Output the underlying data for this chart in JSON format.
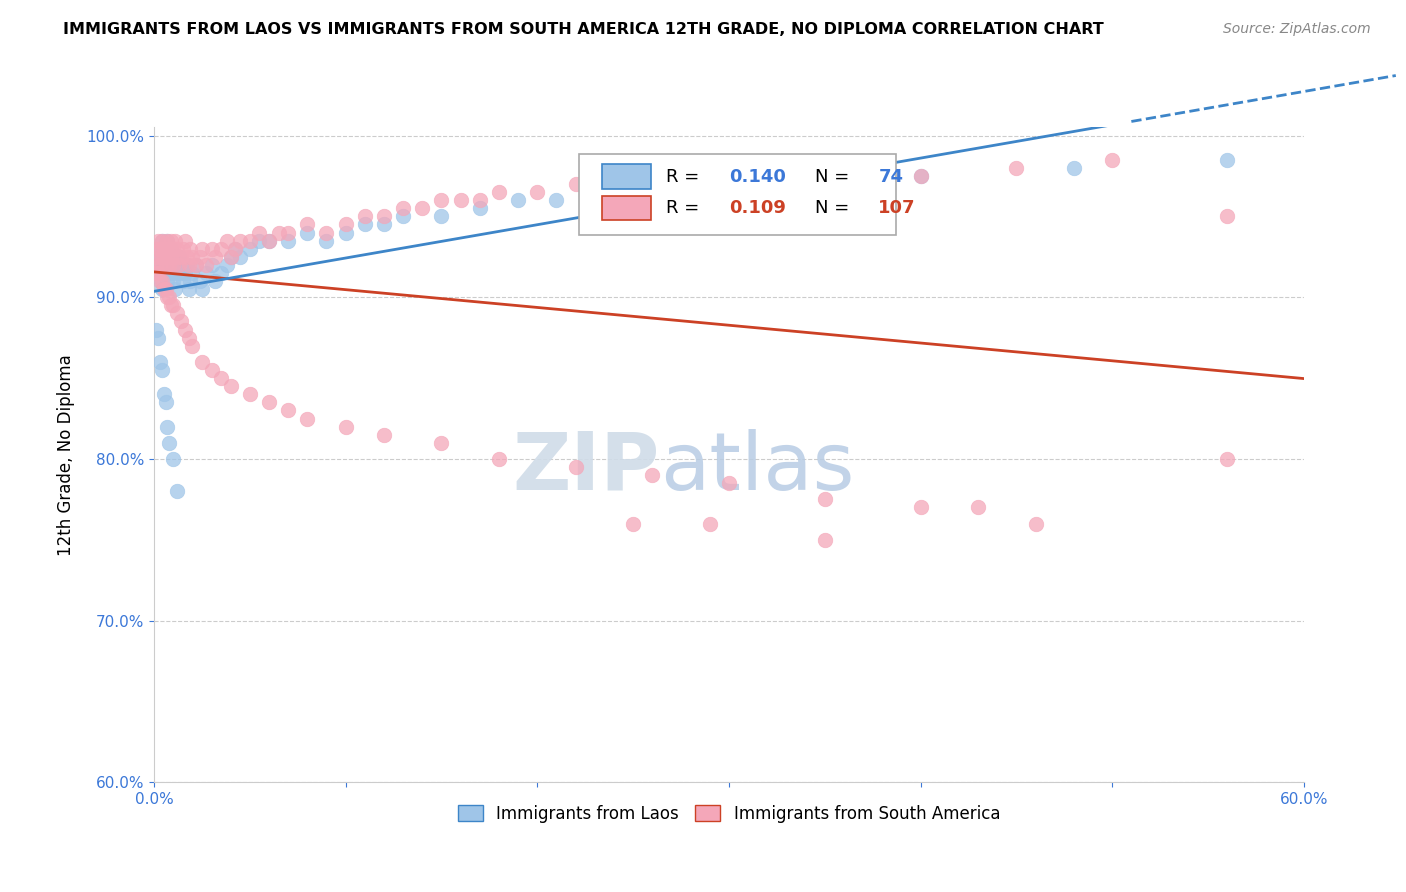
{
  "title": "IMMIGRANTS FROM LAOS VS IMMIGRANTS FROM SOUTH AMERICA 12TH GRADE, NO DIPLOMA CORRELATION CHART",
  "source": "Source: ZipAtlas.com",
  "ylabel_label": "12th Grade, No Diploma",
  "legend_laos": "Immigrants from Laos",
  "legend_sa": "Immigrants from South America",
  "r_laos": 0.14,
  "n_laos": 74,
  "r_sa": 0.109,
  "n_sa": 107,
  "color_laos": "#9fc5e8",
  "color_sa": "#f4a7b9",
  "color_laos_line": "#3d85c8",
  "color_sa_line": "#cc4125",
  "watermark_zip": "ZIP",
  "watermark_atlas": "atlas",
  "xmin": 0.0,
  "xmax": 0.6,
  "ymin": 0.6,
  "ymax": 1.005,
  "laos_x": [
    0.001,
    0.002,
    0.002,
    0.003,
    0.003,
    0.004,
    0.004,
    0.005,
    0.005,
    0.006,
    0.006,
    0.007,
    0.007,
    0.008,
    0.008,
    0.009,
    0.009,
    0.01,
    0.01,
    0.011,
    0.011,
    0.012,
    0.012,
    0.013,
    0.014,
    0.014,
    0.015,
    0.016,
    0.017,
    0.018,
    0.019,
    0.02,
    0.022,
    0.024,
    0.025,
    0.027,
    0.03,
    0.032,
    0.035,
    0.038,
    0.04,
    0.042,
    0.045,
    0.05,
    0.055,
    0.06,
    0.07,
    0.08,
    0.09,
    0.1,
    0.11,
    0.12,
    0.13,
    0.15,
    0.17,
    0.19,
    0.21,
    0.24,
    0.27,
    0.3,
    0.35,
    0.4,
    0.48,
    0.56,
    0.001,
    0.002,
    0.003,
    0.004,
    0.005,
    0.006,
    0.007,
    0.008,
    0.01,
    0.012
  ],
  "laos_y": [
    0.92,
    0.93,
    0.915,
    0.925,
    0.91,
    0.935,
    0.905,
    0.92,
    0.93,
    0.915,
    0.925,
    0.91,
    0.935,
    0.92,
    0.925,
    0.93,
    0.915,
    0.92,
    0.91,
    0.925,
    0.905,
    0.915,
    0.92,
    0.925,
    0.915,
    0.92,
    0.91,
    0.915,
    0.92,
    0.905,
    0.91,
    0.915,
    0.92,
    0.91,
    0.905,
    0.915,
    0.92,
    0.91,
    0.915,
    0.92,
    0.925,
    0.93,
    0.925,
    0.93,
    0.935,
    0.935,
    0.935,
    0.94,
    0.935,
    0.94,
    0.945,
    0.945,
    0.95,
    0.95,
    0.955,
    0.96,
    0.96,
    0.965,
    0.97,
    0.97,
    0.975,
    0.975,
    0.98,
    0.985,
    0.88,
    0.875,
    0.86,
    0.855,
    0.84,
    0.835,
    0.82,
    0.81,
    0.8,
    0.78
  ],
  "sa_x": [
    0.001,
    0.001,
    0.002,
    0.002,
    0.003,
    0.003,
    0.004,
    0.004,
    0.005,
    0.005,
    0.006,
    0.006,
    0.007,
    0.007,
    0.008,
    0.008,
    0.009,
    0.009,
    0.01,
    0.01,
    0.011,
    0.012,
    0.012,
    0.013,
    0.014,
    0.015,
    0.016,
    0.017,
    0.018,
    0.019,
    0.02,
    0.022,
    0.024,
    0.025,
    0.027,
    0.03,
    0.032,
    0.035,
    0.038,
    0.04,
    0.042,
    0.045,
    0.05,
    0.055,
    0.06,
    0.065,
    0.07,
    0.08,
    0.09,
    0.1,
    0.11,
    0.12,
    0.13,
    0.14,
    0.15,
    0.16,
    0.17,
    0.18,
    0.2,
    0.22,
    0.24,
    0.26,
    0.29,
    0.32,
    0.36,
    0.4,
    0.45,
    0.5,
    0.56,
    0.001,
    0.002,
    0.003,
    0.004,
    0.005,
    0.006,
    0.007,
    0.008,
    0.009,
    0.01,
    0.012,
    0.014,
    0.016,
    0.018,
    0.02,
    0.025,
    0.03,
    0.035,
    0.04,
    0.05,
    0.06,
    0.07,
    0.08,
    0.1,
    0.12,
    0.15,
    0.18,
    0.22,
    0.26,
    0.3,
    0.35,
    0.4,
    0.46,
    0.29,
    0.35,
    0.25,
    0.56,
    0.43
  ],
  "sa_y": [
    0.93,
    0.92,
    0.935,
    0.925,
    0.93,
    0.92,
    0.935,
    0.925,
    0.93,
    0.925,
    0.92,
    0.93,
    0.935,
    0.925,
    0.92,
    0.93,
    0.935,
    0.925,
    0.92,
    0.93,
    0.935,
    0.925,
    0.93,
    0.92,
    0.925,
    0.93,
    0.935,
    0.925,
    0.92,
    0.93,
    0.925,
    0.92,
    0.925,
    0.93,
    0.92,
    0.93,
    0.925,
    0.93,
    0.935,
    0.925,
    0.93,
    0.935,
    0.935,
    0.94,
    0.935,
    0.94,
    0.94,
    0.945,
    0.94,
    0.945,
    0.95,
    0.95,
    0.955,
    0.955,
    0.96,
    0.96,
    0.96,
    0.965,
    0.965,
    0.97,
    0.965,
    0.97,
    0.97,
    0.975,
    0.975,
    0.975,
    0.98,
    0.985,
    0.95,
    0.915,
    0.915,
    0.91,
    0.91,
    0.905,
    0.905,
    0.9,
    0.9,
    0.895,
    0.895,
    0.89,
    0.885,
    0.88,
    0.875,
    0.87,
    0.86,
    0.855,
    0.85,
    0.845,
    0.84,
    0.835,
    0.83,
    0.825,
    0.82,
    0.815,
    0.81,
    0.8,
    0.795,
    0.79,
    0.785,
    0.775,
    0.77,
    0.76,
    0.76,
    0.75,
    0.76,
    0.8,
    0.77
  ]
}
